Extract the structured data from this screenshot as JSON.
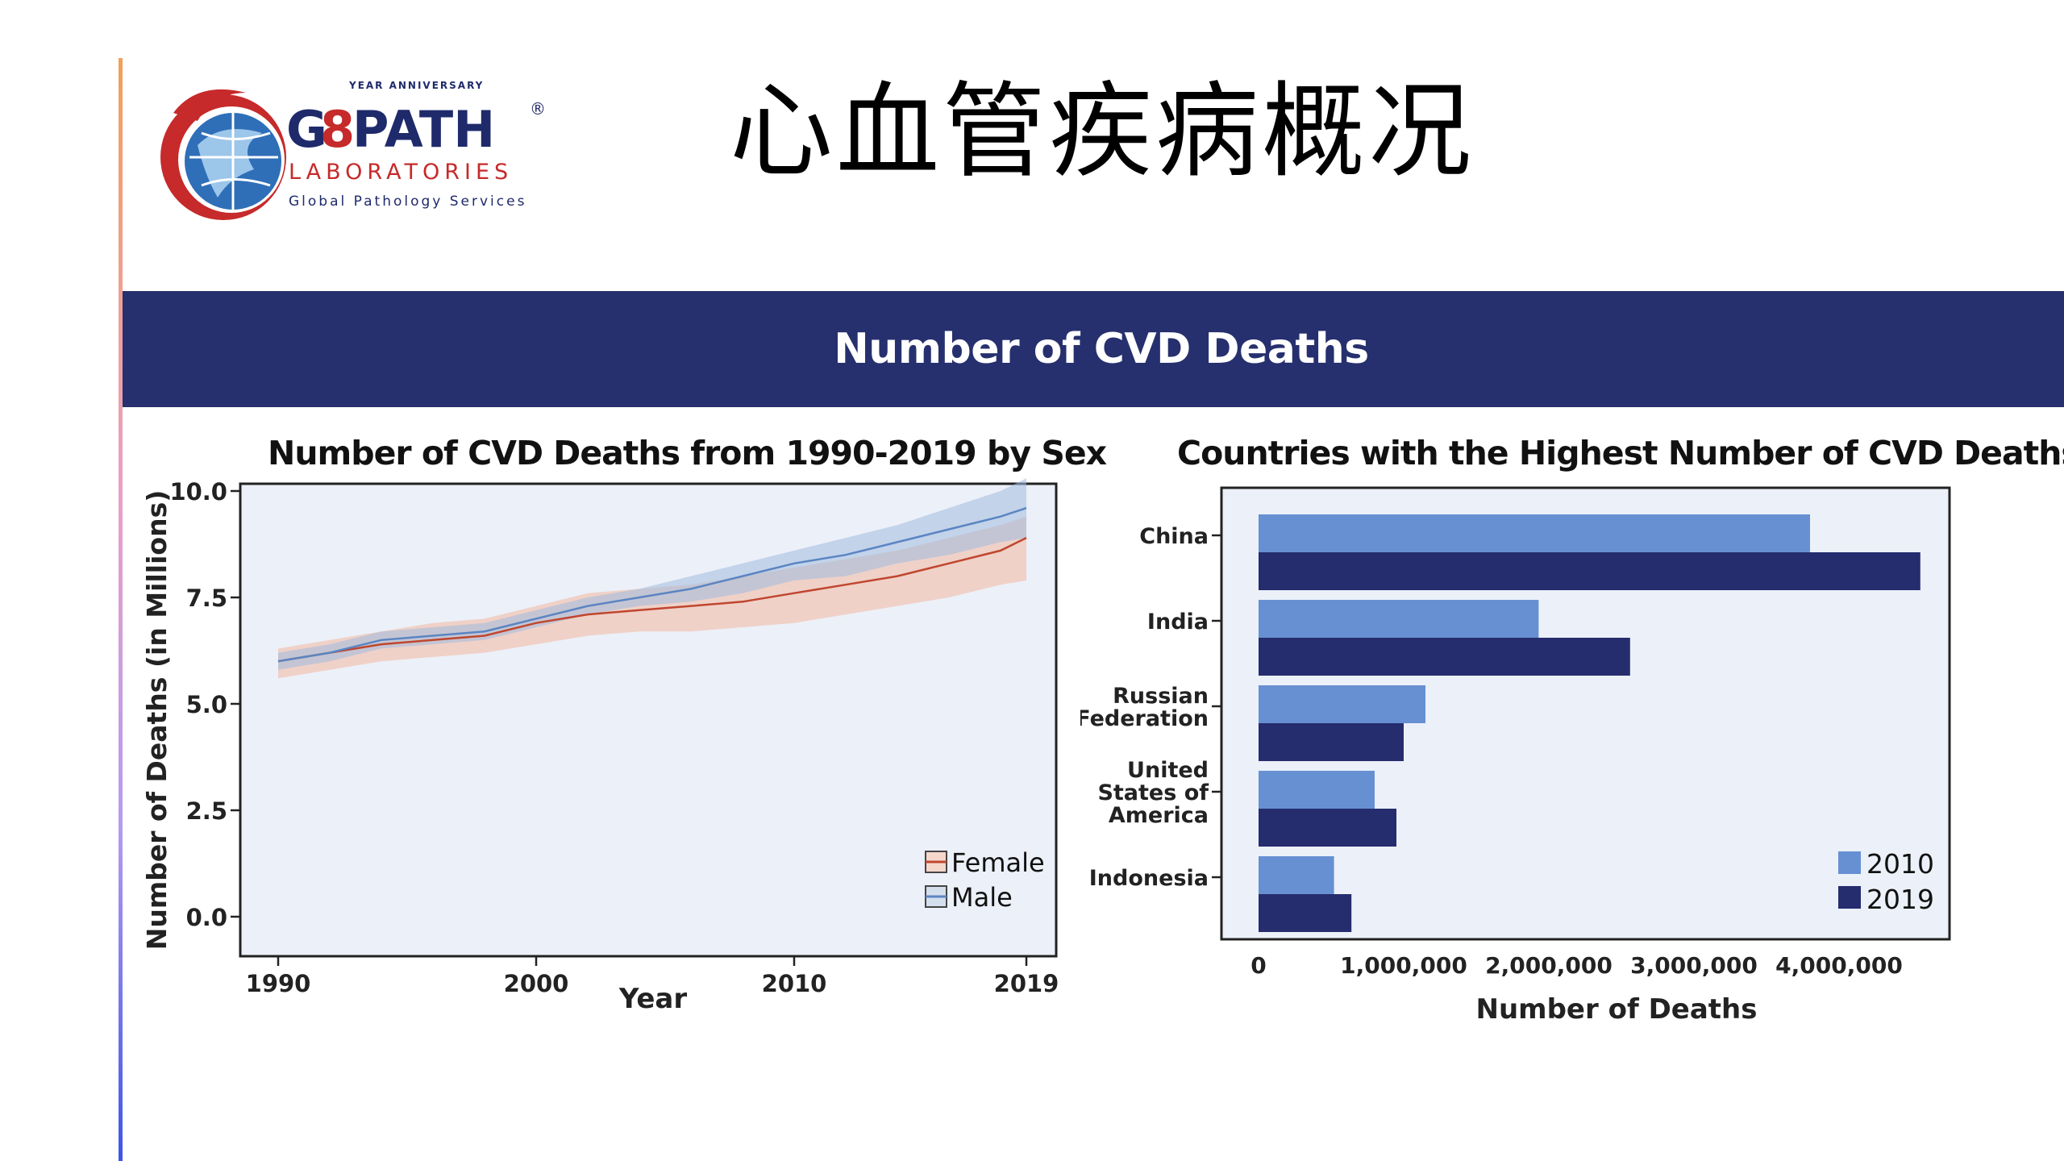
{
  "logo": {
    "small_text": "YEAR ANNIVERSARY",
    "brand_g": "G",
    "brand_rest": "PATH",
    "registered": "®",
    "sub1": "LABORATORIES",
    "sub2": "Global Pathology Services"
  },
  "slide": {
    "title": "心血管疾病概况",
    "banner": "Number of CVD Deaths"
  },
  "colors": {
    "banner": "#26306e",
    "female": "#c0462e",
    "male": "#5b85c2",
    "bar_2010": "#6690d2",
    "bar_2019": "#252d6e",
    "plot_bg": "#ecf0f8"
  },
  "chart_data": [
    {
      "type": "line",
      "title": "Number of CVD Deaths from 1990-2019 by Sex",
      "xlabel": "Year",
      "ylabel": "Number of Deaths (in Millions)",
      "xlim": [
        1990,
        2019
      ],
      "ylim": [
        0,
        10
      ],
      "xticks": [
        "1990",
        "2000",
        "2010",
        "2019"
      ],
      "yticks": [
        "0.0",
        "2.5",
        "5.0",
        "7.5",
        "10.0"
      ],
      "legend_position": "bottom-right",
      "x": [
        1990,
        1992,
        1994,
        1996,
        1998,
        2000,
        2002,
        2004,
        2006,
        2008,
        2010,
        2012,
        2014,
        2016,
        2018,
        2019
      ],
      "series": [
        {
          "name": "Female",
          "values": [
            6.0,
            6.2,
            6.4,
            6.5,
            6.6,
            6.9,
            7.1,
            7.2,
            7.3,
            7.4,
            7.6,
            7.8,
            8.0,
            8.3,
            8.6,
            8.9
          ],
          "lower": [
            5.6,
            5.8,
            6.0,
            6.1,
            6.2,
            6.4,
            6.6,
            6.7,
            6.7,
            6.8,
            6.9,
            7.1,
            7.3,
            7.5,
            7.8,
            7.9
          ],
          "upper": [
            6.3,
            6.5,
            6.7,
            6.9,
            7.0,
            7.3,
            7.6,
            7.7,
            7.8,
            8.0,
            8.2,
            8.4,
            8.6,
            8.9,
            9.2,
            9.4
          ]
        },
        {
          "name": "Male",
          "values": [
            6.0,
            6.2,
            6.5,
            6.6,
            6.7,
            7.0,
            7.3,
            7.5,
            7.7,
            8.0,
            8.3,
            8.5,
            8.8,
            9.1,
            9.4,
            9.6
          ],
          "lower": [
            5.8,
            6.0,
            6.3,
            6.4,
            6.5,
            6.8,
            7.1,
            7.3,
            7.4,
            7.6,
            7.9,
            8.0,
            8.3,
            8.5,
            8.8,
            8.9
          ],
          "upper": [
            6.2,
            6.4,
            6.7,
            6.8,
            6.9,
            7.2,
            7.5,
            7.7,
            8.0,
            8.3,
            8.6,
            8.9,
            9.2,
            9.6,
            10.0,
            10.3
          ]
        }
      ]
    },
    {
      "type": "bar",
      "orientation": "horizontal",
      "title": "Countries with the Highest Number of CVD Deaths",
      "xlabel": "Number of Deaths",
      "ylabel": "",
      "xlim": [
        0,
        4800000
      ],
      "xticks": [
        "0",
        "1,000,000",
        "2,000,000",
        "3,000,000",
        "4,000,000"
      ],
      "legend_position": "bottom-right",
      "categories": [
        "China",
        "India",
        "Russian Federation",
        "United States of America",
        "Indonesia"
      ],
      "category_lines": [
        [
          "China"
        ],
        [
          "India"
        ],
        [
          "Russian",
          "Federation"
        ],
        [
          "United",
          "States of",
          "America"
        ],
        [
          "Indonesia"
        ]
      ],
      "series": [
        {
          "name": "2010",
          "values": [
            3800000,
            1930000,
            1150000,
            800000,
            520000
          ]
        },
        {
          "name": "2019",
          "values": [
            4560000,
            2560000,
            1000000,
            950000,
            640000
          ]
        }
      ]
    }
  ]
}
